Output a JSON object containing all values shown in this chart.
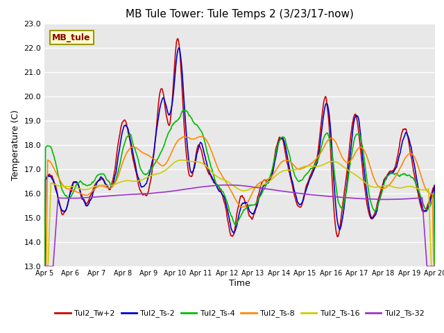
{
  "title": "MB Tule Tower: Tule Temps 2 (3/23/17-now)",
  "ylabel": "Temperature (C)",
  "xlabel": "Time",
  "ylim": [
    13.0,
    23.0
  ],
  "yticks": [
    13.0,
    14.0,
    15.0,
    16.0,
    17.0,
    18.0,
    19.0,
    20.0,
    21.0,
    22.0,
    23.0
  ],
  "xtick_labels": [
    "Apr 5",
    "Apr 6",
    "Apr 7",
    "Apr 8",
    "Apr 9",
    "Apr 10",
    "Apr 11",
    "Apr 12",
    "Apr 13",
    "Apr 14",
    "Apr 15",
    "Apr 16",
    "Apr 17",
    "Apr 18",
    "Apr 19",
    "Apr 20"
  ],
  "fig_bg_color": "#ffffff",
  "plot_bg_color": "#e8e8e8",
  "grid_color": "#ffffff",
  "series": {
    "Tul2_Tw+2": {
      "color": "#cc0000",
      "lw": 1.2
    },
    "Tul2_Ts-2": {
      "color": "#0000cc",
      "lw": 1.2
    },
    "Tul2_Ts-4": {
      "color": "#00bb00",
      "lw": 1.2
    },
    "Tul2_Ts-8": {
      "color": "#ff8800",
      "lw": 1.2
    },
    "Tul2_Ts-16": {
      "color": "#cccc00",
      "lw": 1.2
    },
    "Tul2_Ts-32": {
      "color": "#9933cc",
      "lw": 1.2
    }
  },
  "legend_label": "MB_tule",
  "legend_bg": "#ffffcc",
  "legend_border": "#999900",
  "title_fontsize": 11,
  "axis_fontsize": 9,
  "tick_fontsize": 8
}
